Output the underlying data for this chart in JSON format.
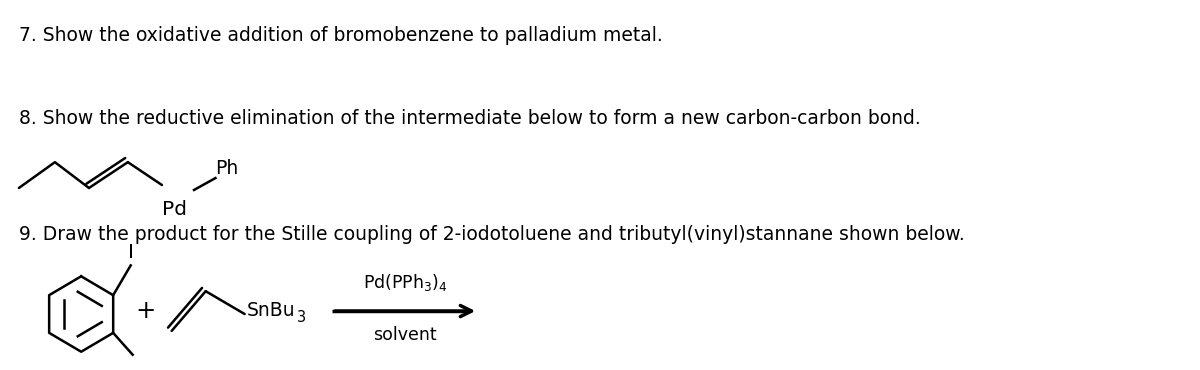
{
  "background_color": "#ffffff",
  "fig_width": 12.0,
  "fig_height": 3.7,
  "dpi": 100,
  "line7": "7. Show the oxidative addition of bromobenzene to palladium metal.",
  "line8": "8. Show the reductive elimination of the intermediate below to form a new carbon-carbon bond.",
  "line9": "9. Draw the product for the Stille coupling of 2-iodotoluene and tributyl(vinyl)stannane shown below.",
  "text_color": "#000000",
  "font_size_main": 13.5,
  "font_family": "DejaVu Sans",
  "lw": 1.8
}
